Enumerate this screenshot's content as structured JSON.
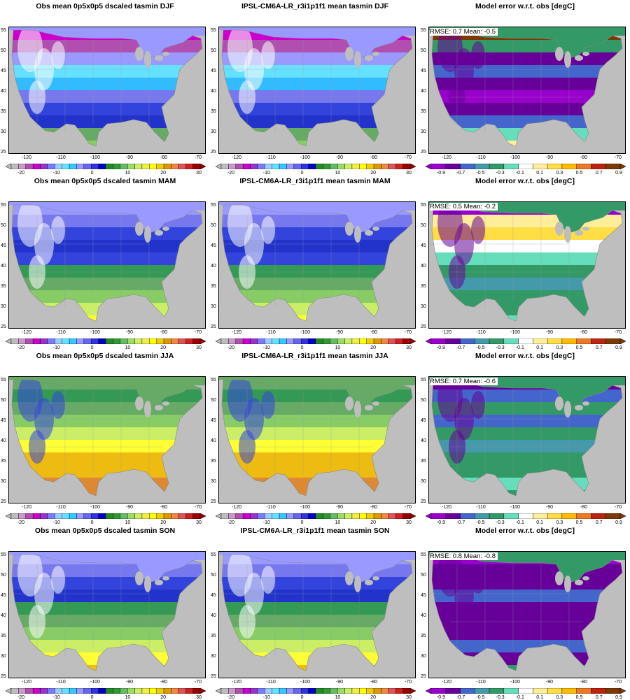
{
  "rows": [
    {
      "season": "DJF",
      "obs_title": "Obs mean 0p5x0p5 dscaled tasmin DJF",
      "model_title": "IPSL-CM6A-LR_r3i1p1f1 mean tasmin DJF",
      "error_title": "Model error w.r.t. obs [degC]",
      "rmse_label": "RMSE: 0.7",
      "mean_label": "Mean: -0.5"
    },
    {
      "season": "MAM",
      "obs_title": "Obs mean 0p5x0p5 dscaled tasmin MAM",
      "model_title": "IPSL-CM6A-LR_r3i1p1f1 mean tasmin MAM",
      "error_title": "Model error w.r.t. obs [degC]",
      "rmse_label": "RMSE: 0.5",
      "mean_label": "Mean: -0.2"
    },
    {
      "season": "JJA",
      "obs_title": "Obs mean 0p5x0p5 dscaled tasmin JJA",
      "model_title": "IPSL-CM6A-LR_r3i1p1f1 mean tasmin JJA",
      "error_title": "Model error w.r.t. obs [degC]",
      "rmse_label": "RMSE: 0.7",
      "mean_label": "Mean: -0.6"
    },
    {
      "season": "SON",
      "obs_title": "Obs mean 0p5x0p5 dscaled tasmin SON",
      "model_title": "IPSL-CM6A-LR_r3i1p1f1 mean tasmin SON",
      "error_title": "Model error w.r.t. obs [degC]",
      "rmse_label": "RMSE: 0.8",
      "mean_label": "Mean: -0.8"
    }
  ],
  "axes": {
    "lat_ticks": [
      "55",
      "50",
      "45",
      "40",
      "35",
      "30",
      "25"
    ],
    "lon_ticks": [
      "-120",
      "-110",
      "-100",
      "-90",
      "-80",
      "-70"
    ]
  },
  "temp_colorbar": {
    "labels": [
      "-20",
      "-10",
      "0",
      "10",
      "20",
      "30"
    ],
    "colors": [
      "#bdbdbd",
      "#cc99cc",
      "#b04fb0",
      "#cc00cc",
      "#9933cc",
      "#7a7aff",
      "#99ccff",
      "#66e0ff",
      "#33c8ff",
      "#9999ff",
      "#6666ee",
      "#3333dd",
      "#0000cc",
      "#228b22",
      "#339933",
      "#66bb66",
      "#99dd66",
      "#ccee66",
      "#eeee44",
      "#ffff00",
      "#eecc00",
      "#dd9900",
      "#ee8844",
      "#dd5555",
      "#cc2222",
      "#990000"
    ],
    "data_colors": [
      "#ffffff",
      "#bbbbcc",
      "#cc00cc",
      "#aa66cc",
      "#66ddff",
      "#33bbff",
      "#7777ee",
      "#3344dd",
      "#2233cc",
      "#66aa66",
      "#339955",
      "#88cc66",
      "#ccee66",
      "#ffff33",
      "#eebb11",
      "#dd8833",
      "#dd5555"
    ]
  },
  "error_colorbar": {
    "labels": [
      "-0.9",
      "-0.7",
      "-0.5",
      "-0.3",
      "-0.1",
      "0.1",
      "0.3",
      "0.5",
      "0.7",
      "0.9"
    ],
    "colors": [
      "#9900cc",
      "#660099",
      "#4466cc",
      "#4499aa",
      "#339966",
      "#66ddbb",
      "#ffffff",
      "#ffee99",
      "#ffdd44",
      "#ffbb00",
      "#ee7722",
      "#bb2211",
      "#7a3a00"
    ]
  }
}
